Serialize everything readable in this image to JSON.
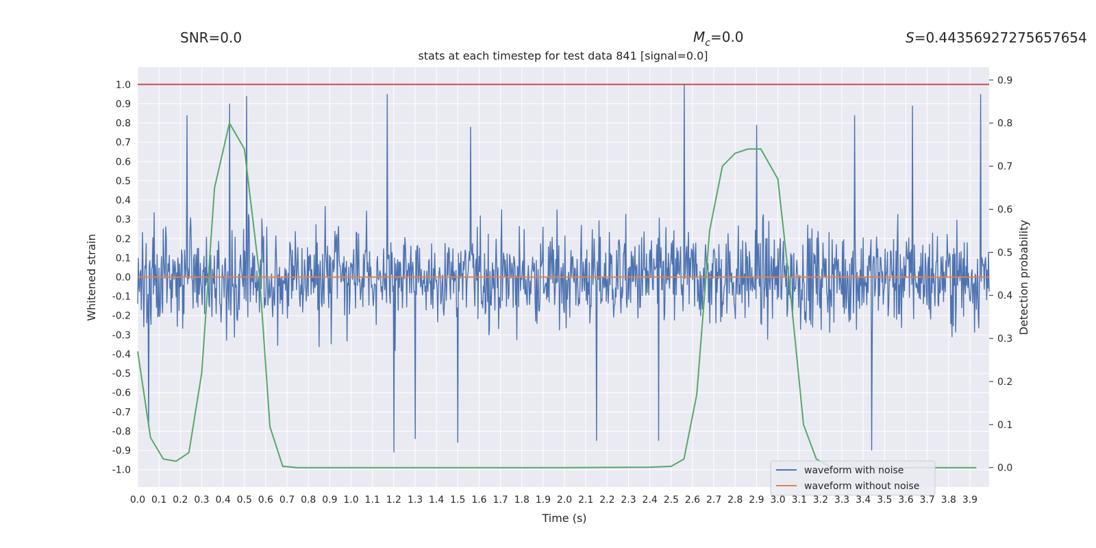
{
  "header": {
    "snr": "SNR=0.0",
    "mc_symbol": "M",
    "mc_sub": "c",
    "mc_value": "=0.0",
    "s_symbol": "S",
    "s_value": "=0.44356927275657654"
  },
  "chart_data": {
    "type": "line",
    "title": "stats at each timestep for test data 841 [signal=0.0]",
    "xlabel": "Time (s)",
    "ylabel_left": "Whitened strain",
    "ylabel_right": "Detection probability",
    "xlim": [
      0.0,
      3.99
    ],
    "ylim_left": [
      -1.09,
      1.09
    ],
    "ylim_right": [
      -0.045,
      0.93
    ],
    "x_ticks": [
      "0.0",
      "0.1",
      "0.2",
      "0.3",
      "0.4",
      "0.5",
      "0.6",
      "0.7",
      "0.8",
      "0.9",
      "1.0",
      "1.1",
      "1.2",
      "1.3",
      "1.4",
      "1.5",
      "1.6",
      "1.7",
      "1.8",
      "1.9",
      "2.0",
      "2.1",
      "2.2",
      "2.3",
      "2.4",
      "2.5",
      "2.6",
      "2.7",
      "2.8",
      "2.9",
      "3.0",
      "3.1",
      "3.2",
      "3.3",
      "3.4",
      "3.5",
      "3.6",
      "3.7",
      "3.8",
      "3.9"
    ],
    "y_left_ticks": [
      "1.0",
      "0.9",
      "0.8",
      "0.7",
      "0.6",
      "0.5",
      "0.4",
      "0.3",
      "0.2",
      "0.1",
      "0.0",
      "-0.1",
      "-0.2",
      "-0.3",
      "-0.4",
      "-0.5",
      "-0.6",
      "-0.7",
      "-0.8",
      "-0.9",
      "-1.0"
    ],
    "y_right_ticks": [
      "0.9",
      "0.8",
      "0.7",
      "0.6",
      "0.5",
      "0.4",
      "0.3",
      "0.2",
      "0.1",
      "0.0"
    ],
    "threshold": 1.0,
    "series": [
      {
        "name": "waveform with noise",
        "axis": "left",
        "color": "#4c72b0",
        "description": "Whitened noisy strain, roughly symmetric around 0 with amplitude mostly within ±0.6 and peaks near ±1.0",
        "spikes": [
          {
            "x": 0.23,
            "y": 0.84
          },
          {
            "x": 0.43,
            "y": 0.9
          },
          {
            "x": 0.51,
            "y": 0.94
          },
          {
            "x": 1.17,
            "y": 0.95
          },
          {
            "x": 1.56,
            "y": 0.78
          },
          {
            "x": 2.56,
            "y": 1.0
          },
          {
            "x": 2.9,
            "y": 0.79
          },
          {
            "x": 3.36,
            "y": 0.84
          },
          {
            "x": 3.63,
            "y": 0.89
          },
          {
            "x": 3.95,
            "y": 0.95
          },
          {
            "x": 0.05,
            "y": -0.78
          },
          {
            "x": 1.2,
            "y": -0.91
          },
          {
            "x": 1.3,
            "y": -0.84
          },
          {
            "x": 1.5,
            "y": -0.86
          },
          {
            "x": 2.15,
            "y": -0.85
          },
          {
            "x": 2.44,
            "y": -0.85
          },
          {
            "x": 3.44,
            "y": -0.9
          }
        ]
      },
      {
        "name": "waveform without noise",
        "axis": "left",
        "color": "#dd8452",
        "x": [
          0.0,
          3.99
        ],
        "y": [
          0.0,
          0.0
        ]
      },
      {
        "name": "detection probability",
        "axis": "right",
        "color": "#55a868",
        "x": [
          0.0,
          0.06,
          0.12,
          0.18,
          0.24,
          0.3,
          0.36,
          0.43,
          0.5,
          0.57,
          0.62,
          0.68,
          0.75,
          0.8,
          1.0,
          1.5,
          2.0,
          2.4,
          2.5,
          2.56,
          2.62,
          2.68,
          2.74,
          2.8,
          2.86,
          2.92,
          3.0,
          3.06,
          3.12,
          3.18,
          3.25,
          3.5,
          3.93
        ],
        "y": [
          0.27,
          0.07,
          0.02,
          0.015,
          0.035,
          0.22,
          0.65,
          0.8,
          0.74,
          0.45,
          0.095,
          0.003,
          0.0,
          0.0,
          0.0,
          0.0,
          0.0,
          0.001,
          0.003,
          0.02,
          0.17,
          0.55,
          0.7,
          0.73,
          0.74,
          0.74,
          0.67,
          0.4,
          0.1,
          0.02,
          0.0,
          0.0,
          0.0
        ]
      }
    ],
    "legend": {
      "placement": "lower-right",
      "entries": [
        {
          "label": "waveform with noise",
          "color": "#4c72b0"
        },
        {
          "label": "waveform without noise",
          "color": "#dd8452"
        }
      ]
    },
    "threshold_color": "#c44e52"
  }
}
